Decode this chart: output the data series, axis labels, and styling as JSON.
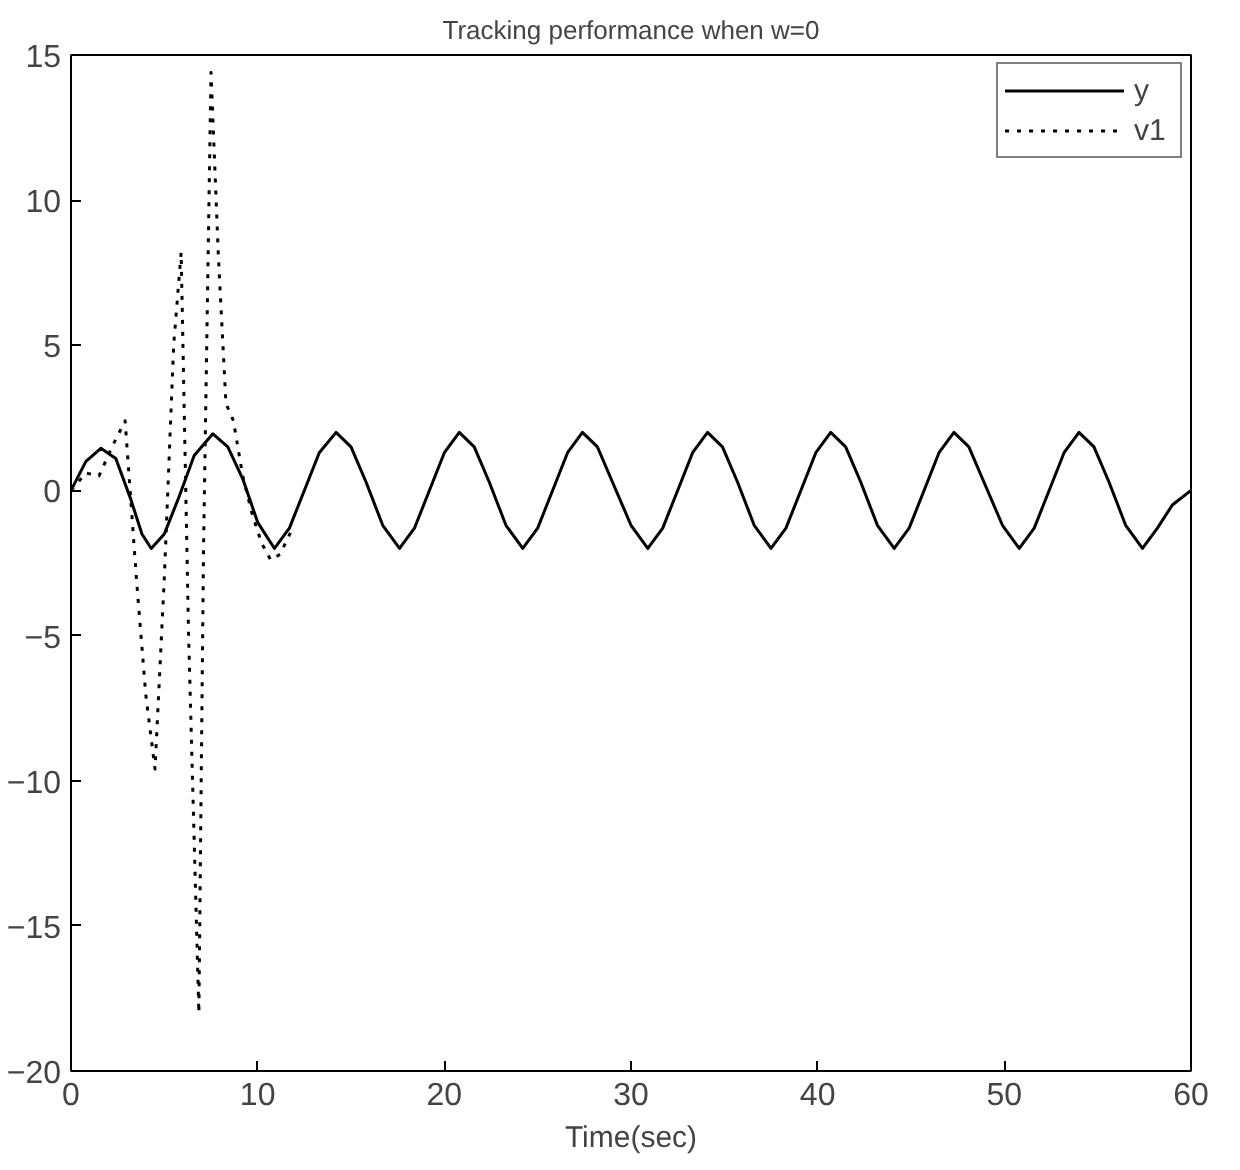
{
  "chart_data": {
    "type": "line",
    "title": "Tracking performance when w=0",
    "xlabel": "Time(sec)",
    "xlim": [
      0,
      60
    ],
    "xticks": [
      0,
      10,
      20,
      30,
      40,
      50,
      60
    ],
    "ylim": [
      -20,
      15
    ],
    "yticks": [
      -20,
      -15,
      -10,
      -5,
      0,
      5,
      10,
      15
    ],
    "grid": false,
    "legend": "top right",
    "marker": "none",
    "series": [
      {
        "name": "y",
        "color": "#000000",
        "line_style": "solid",
        "x": [
          0,
          0.8,
          1.6,
          2.4,
          3.2,
          3.8,
          4.3,
          5.0,
          5.8,
          6.6,
          7.6,
          8.4,
          9.2,
          10.0,
          10.9,
          11.7,
          12.5,
          13.3,
          14.2,
          15.0,
          15.8,
          16.7,
          17.6,
          18.4,
          19.2,
          20.0,
          20.8,
          21.6,
          22.4,
          23.3,
          24.2,
          25.0,
          25.8,
          26.6,
          27.4,
          28.2,
          29.0,
          30.0,
          30.9,
          31.7,
          32.5,
          33.3,
          34.1,
          34.9,
          35.7,
          36.6,
          37.5,
          38.3,
          39.1,
          39.9,
          40.7,
          41.5,
          42.3,
          43.2,
          44.1,
          44.9,
          45.7,
          46.5,
          47.3,
          48.1,
          48.9,
          49.9,
          50.8,
          51.6,
          52.4,
          53.2,
          54.0,
          54.8,
          55.6,
          56.5,
          57.4,
          58.2,
          59.0,
          60
        ],
        "values": [
          0,
          1.0,
          1.45,
          1.1,
          -0.3,
          -1.5,
          -2,
          -1.5,
          -0.2,
          1.2,
          1.95,
          1.5,
          0.4,
          -1.1,
          -2,
          -1.3,
          0,
          1.3,
          2,
          1.5,
          0.3,
          -1.2,
          -2,
          -1.3,
          0,
          1.3,
          2,
          1.5,
          0.3,
          -1.2,
          -2,
          -1.3,
          0,
          1.3,
          2,
          1.5,
          0.3,
          -1.2,
          -2,
          -1.3,
          0,
          1.3,
          2,
          1.5,
          0.3,
          -1.2,
          -2,
          -1.3,
          0,
          1.3,
          2,
          1.5,
          0.3,
          -1.2,
          -2,
          -1.3,
          0,
          1.3,
          2,
          1.5,
          0.3,
          -1.2,
          -2,
          -1.3,
          0,
          1.3,
          2,
          1.5,
          0.3,
          -1.2,
          -2,
          -1.3,
          -0.5,
          0
        ]
      },
      {
        "name": "v1",
        "color": "#000000",
        "line_style": "dotted",
        "x": [
          0,
          0.8,
          1.5,
          2.2,
          2.9,
          3.5,
          4.0,
          4.5,
          5.0,
          5.5,
          5.9,
          6.3,
          6.85,
          7.1,
          7.5,
          7.9,
          8.3,
          8.7,
          9.2,
          9.7,
          10.2,
          10.7,
          11.2,
          11.8
        ],
        "values": [
          0,
          0.6,
          0.5,
          1.5,
          2.4,
          -3,
          -7,
          -9.6,
          -3,
          5,
          8.2,
          -5,
          -18,
          -2,
          14.4,
          8,
          3,
          2.4,
          0.5,
          -0.8,
          -1.8,
          -2.4,
          -2.2,
          -1.4
        ]
      }
    ]
  }
}
